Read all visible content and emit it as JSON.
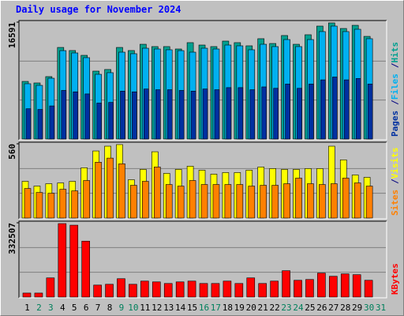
{
  "chart_data": [
    {
      "type": "bar",
      "title": "Daily usage for November 2024",
      "categories": [
        "1",
        "2",
        "3",
        "4",
        "5",
        "6",
        "7",
        "8",
        "9",
        "10",
        "11",
        "12",
        "13",
        "14",
        "15",
        "16",
        "17",
        "18",
        "19",
        "20",
        "21",
        "22",
        "23",
        "24",
        "25",
        "26",
        "27",
        "28",
        "29",
        "30",
        "31"
      ],
      "category_colors": [
        "#000000",
        "#00805c",
        "#00805c",
        "#000000",
        "#000000",
        "#000000",
        "#000000",
        "#000000",
        "#00805c",
        "#00805c",
        "#000000",
        "#000000",
        "#000000",
        "#000000",
        "#000000",
        "#00805c",
        "#00805c",
        "#000000",
        "#000000",
        "#000000",
        "#000000",
        "#000000",
        "#00805c",
        "#00805c",
        "#000000",
        "#000000",
        "#000000",
        "#000000",
        "#000000",
        "#00805c",
        "#00805c"
      ],
      "legend_separator": "/",
      "legend_separator_color": "#000080",
      "ylim": [
        0,
        16591
      ],
      "yticks": [
        16591
      ],
      "series": [
        {
          "name": "Pages",
          "color": "#0030a0",
          "values": [
            4300,
            4200,
            4700,
            6900,
            6700,
            6400,
            5100,
            5200,
            6800,
            6700,
            7100,
            7000,
            7000,
            6900,
            6800,
            7100,
            7000,
            7300,
            7300,
            7000,
            7400,
            7200,
            7800,
            7200,
            7800,
            8400,
            8800,
            8400,
            8600,
            7800,
            null
          ]
        },
        {
          "name": "Files",
          "color": "#00b0f0",
          "values": [
            7850,
            7620,
            8630,
            12550,
            12220,
            11550,
            9190,
            9420,
            12330,
            12110,
            12890,
            12780,
            12670,
            12550,
            12330,
            12890,
            12780,
            13340,
            13230,
            12670,
            13450,
            13120,
            14120,
            13120,
            14120,
            15250,
            16030,
            15250,
            15580,
            14240,
            null
          ]
        },
        {
          "name": "Hits",
          "color": "#00a090",
          "values": [
            8180,
            7960,
            8860,
            13000,
            12560,
            11880,
            9640,
            9870,
            13000,
            12560,
            13450,
            13120,
            13120,
            12780,
            13680,
            13340,
            13120,
            13900,
            13680,
            13230,
            14240,
            13560,
            14690,
            13450,
            14800,
            16030,
            16480,
            15690,
            16140,
            14570,
            null
          ]
        }
      ]
    },
    {
      "type": "bar",
      "legend_separator": "/",
      "legend_separator_color": "#000080",
      "ylim": [
        0,
        560
      ],
      "yticks": [
        560
      ],
      "series": [
        {
          "name": "Sites",
          "color": "#ff8000",
          "values": [
            223,
            193,
            187,
            217,
            205,
            283,
            421,
            452,
            409,
            247,
            277,
            385,
            253,
            241,
            283,
            253,
            253,
            253,
            253,
            241,
            247,
            247,
            259,
            301,
            259,
            253,
            259,
            301,
            265,
            241,
            null
          ]
        },
        {
          "name": "Visits",
          "color": "#ffff00",
          "values": [
            277,
            241,
            259,
            265,
            277,
            379,
            506,
            542,
            554,
            289,
            367,
            500,
            337,
            367,
            391,
            361,
            331,
            343,
            343,
            361,
            385,
            373,
            367,
            367,
            373,
            373,
            542,
            439,
            325,
            307,
            null
          ]
        }
      ]
    },
    {
      "type": "bar",
      "ylim": [
        0,
        332507
      ],
      "yticks": [
        332507
      ],
      "series": [
        {
          "name": "KBytes",
          "color": "#ff0000",
          "values": [
            17900,
            17900,
            85800,
            328900,
            321800,
            250300,
            53600,
            57200,
            82200,
            57200,
            71500,
            67900,
            60800,
            67900,
            71500,
            60800,
            60800,
            71500,
            60800,
            85800,
            60800,
            71500,
            118000,
            75100,
            78700,
            107300,
            93000,
            103700,
            100100,
            75100,
            null
          ]
        }
      ]
    }
  ]
}
